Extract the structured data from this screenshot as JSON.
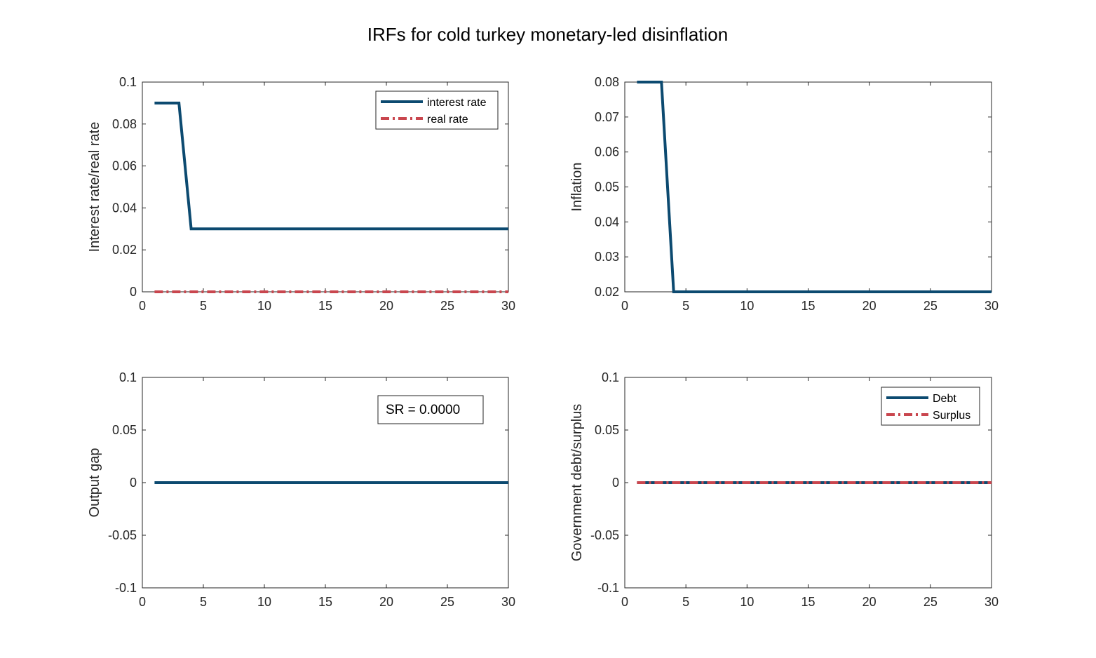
{
  "figure_title": "IRFs for cold turkey monetary-led disinflation",
  "colors": {
    "series_blue": "#0c4a70",
    "series_red": "#c9464e",
    "axis": "#262626"
  },
  "chart_data": [
    {
      "type": "line",
      "title": "",
      "xlabel": "",
      "ylabel": "Interest rate/real rate",
      "xlim": [
        0,
        30
      ],
      "ylim": [
        0,
        0.1
      ],
      "xticks": [
        0,
        5,
        10,
        15,
        20,
        25,
        30
      ],
      "yticks": [
        0,
        0.02,
        0.04,
        0.06,
        0.08,
        0.1
      ],
      "ytick_labels": [
        "0",
        "0.02",
        "0.04",
        "0.06",
        "0.08",
        "0.1"
      ],
      "x": [
        1,
        2,
        3,
        4,
        5,
        6,
        7,
        8,
        9,
        10,
        11,
        12,
        13,
        14,
        15,
        16,
        17,
        18,
        19,
        20,
        21,
        22,
        23,
        24,
        25,
        26,
        27,
        28,
        29,
        30
      ],
      "series": [
        {
          "name": "interest rate",
          "style": "solid",
          "color": "#0c4a70",
          "values": [
            0.09,
            0.09,
            0.09,
            0.03,
            0.03,
            0.03,
            0.03,
            0.03,
            0.03,
            0.03,
            0.03,
            0.03,
            0.03,
            0.03,
            0.03,
            0.03,
            0.03,
            0.03,
            0.03,
            0.03,
            0.03,
            0.03,
            0.03,
            0.03,
            0.03,
            0.03,
            0.03,
            0.03,
            0.03,
            0.03
          ]
        },
        {
          "name": "real rate",
          "style": "dashdot",
          "color": "#c9464e",
          "values": [
            0,
            0,
            0,
            0,
            0,
            0,
            0,
            0,
            0,
            0,
            0,
            0,
            0,
            0,
            0,
            0,
            0,
            0,
            0,
            0,
            0,
            0,
            0,
            0,
            0,
            0,
            0,
            0,
            0,
            0
          ]
        }
      ],
      "legend": "top-right",
      "grid": false
    },
    {
      "type": "line",
      "title": "",
      "xlabel": "",
      "ylabel": "Inflation",
      "xlim": [
        0,
        30
      ],
      "ylim": [
        0.02,
        0.08
      ],
      "xticks": [
        0,
        5,
        10,
        15,
        20,
        25,
        30
      ],
      "yticks": [
        0.02,
        0.03,
        0.04,
        0.05,
        0.06,
        0.07,
        0.08
      ],
      "ytick_labels": [
        "0.02",
        "0.03",
        "0.04",
        "0.05",
        "0.06",
        "0.07",
        "0.08"
      ],
      "x": [
        1,
        2,
        3,
        4,
        5,
        6,
        7,
        8,
        9,
        10,
        11,
        12,
        13,
        14,
        15,
        16,
        17,
        18,
        19,
        20,
        21,
        22,
        23,
        24,
        25,
        26,
        27,
        28,
        29,
        30
      ],
      "series": [
        {
          "style": "solid",
          "color": "#0c4a70",
          "values": [
            0.08,
            0.08,
            0.08,
            0.02,
            0.02,
            0.02,
            0.02,
            0.02,
            0.02,
            0.02,
            0.02,
            0.02,
            0.02,
            0.02,
            0.02,
            0.02,
            0.02,
            0.02,
            0.02,
            0.02,
            0.02,
            0.02,
            0.02,
            0.02,
            0.02,
            0.02,
            0.02,
            0.02,
            0.02,
            0.02
          ]
        }
      ],
      "grid": false
    },
    {
      "type": "line",
      "title": "",
      "xlabel": "",
      "ylabel": "Output gap",
      "xlim": [
        0,
        30
      ],
      "ylim": [
        -0.1,
        0.1
      ],
      "xticks": [
        0,
        5,
        10,
        15,
        20,
        25,
        30
      ],
      "yticks": [
        -0.1,
        -0.05,
        0,
        0.05,
        0.1
      ],
      "ytick_labels": [
        "-0.1",
        "-0.05",
        "0",
        "0.05",
        "0.1"
      ],
      "x": [
        1,
        2,
        3,
        4,
        5,
        6,
        7,
        8,
        9,
        10,
        11,
        12,
        13,
        14,
        15,
        16,
        17,
        18,
        19,
        20,
        21,
        22,
        23,
        24,
        25,
        26,
        27,
        28,
        29,
        30
      ],
      "series": [
        {
          "style": "solid",
          "color": "#0c4a70",
          "values": [
            0,
            0,
            0,
            0,
            0,
            0,
            0,
            0,
            0,
            0,
            0,
            0,
            0,
            0,
            0,
            0,
            0,
            0,
            0,
            0,
            0,
            0,
            0,
            0,
            0,
            0,
            0,
            0,
            0,
            0
          ]
        }
      ],
      "annotation": "SR = 0.0000",
      "grid": false
    },
    {
      "type": "line",
      "title": "",
      "xlabel": "",
      "ylabel": "Government debt/surplus",
      "xlim": [
        0,
        30
      ],
      "ylim": [
        -0.1,
        0.1
      ],
      "xticks": [
        0,
        5,
        10,
        15,
        20,
        25,
        30
      ],
      "yticks": [
        -0.1,
        -0.05,
        0,
        0.05,
        0.1
      ],
      "ytick_labels": [
        "-0.1",
        "-0.05",
        "0",
        "0.05",
        "0.1"
      ],
      "x": [
        1,
        2,
        3,
        4,
        5,
        6,
        7,
        8,
        9,
        10,
        11,
        12,
        13,
        14,
        15,
        16,
        17,
        18,
        19,
        20,
        21,
        22,
        23,
        24,
        25,
        26,
        27,
        28,
        29,
        30
      ],
      "series": [
        {
          "name": "Debt",
          "style": "solid",
          "color": "#0c4a70",
          "values": [
            0,
            0,
            0,
            0,
            0,
            0,
            0,
            0,
            0,
            0,
            0,
            0,
            0,
            0,
            0,
            0,
            0,
            0,
            0,
            0,
            0,
            0,
            0,
            0,
            0,
            0,
            0,
            0,
            0,
            0
          ]
        },
        {
          "name": "Surplus",
          "style": "dashdot",
          "color": "#c9464e",
          "values": [
            0,
            0,
            0,
            0,
            0,
            0,
            0,
            0,
            0,
            0,
            0,
            0,
            0,
            0,
            0,
            0,
            0,
            0,
            0,
            0,
            0,
            0,
            0,
            0,
            0,
            0,
            0,
            0,
            0,
            0
          ]
        }
      ],
      "legend": "top-right",
      "grid": false
    }
  ]
}
